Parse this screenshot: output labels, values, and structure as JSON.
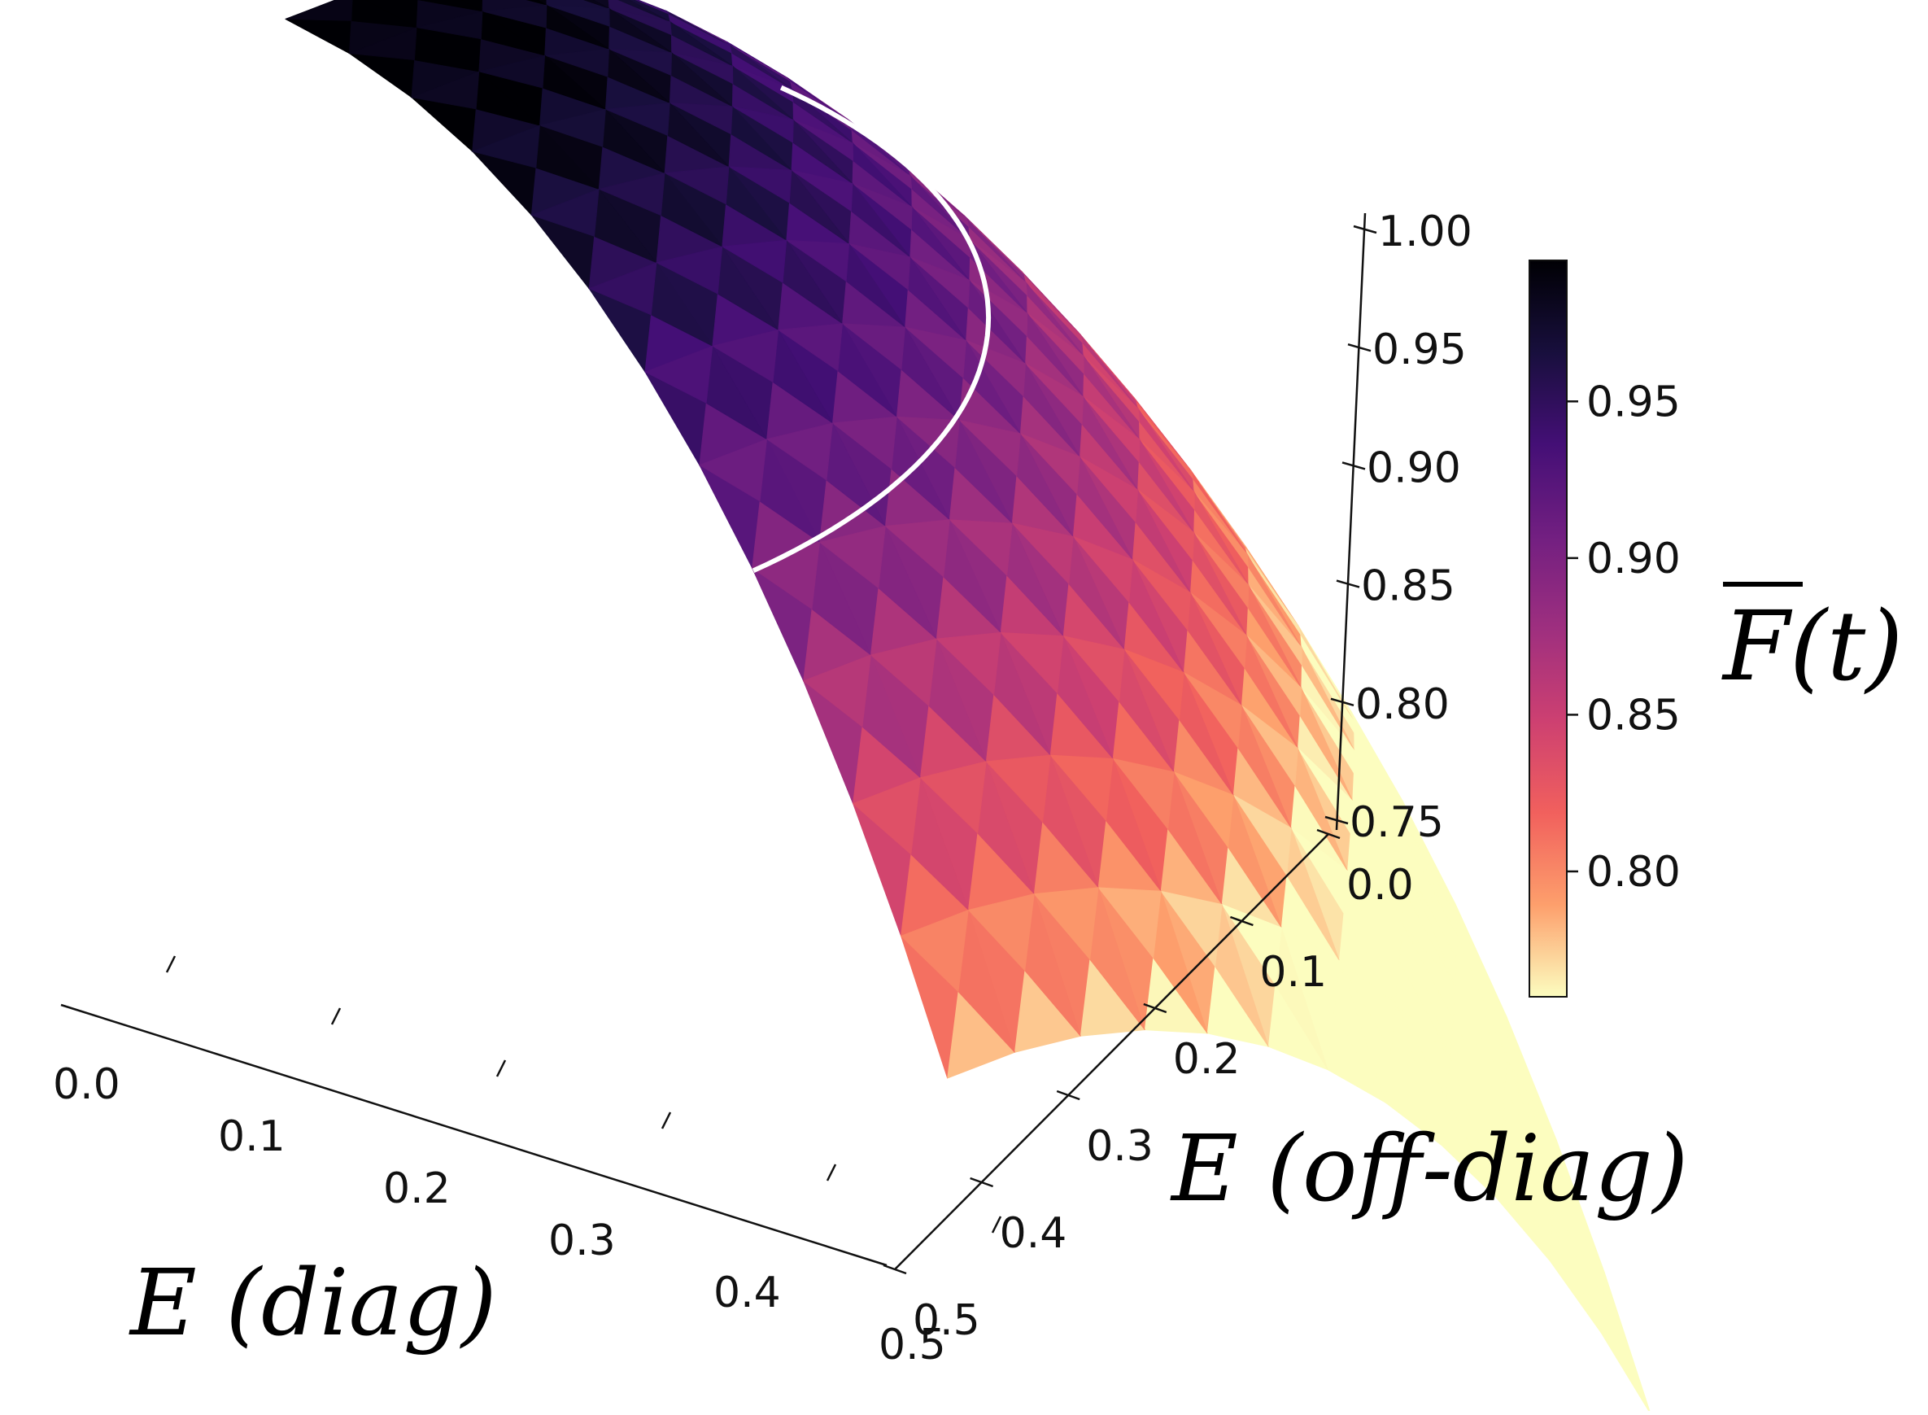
{
  "chart_data": {
    "type": "surface3d",
    "x": {
      "label": "E (diag)",
      "ticks": [
        "0.0",
        "0.1",
        "0.2",
        "0.3",
        "0.4",
        "0.5"
      ],
      "range": [
        0,
        0.5
      ]
    },
    "y": {
      "label": "E (off-diag)",
      "ticks": [
        "0.0",
        "0.1",
        "0.2",
        "0.3",
        "0.4",
        "0.5"
      ],
      "range": [
        0,
        0.5
      ]
    },
    "z": {
      "ticks": [
        "0.75",
        "0.80",
        "0.85",
        "0.90",
        "0.95",
        "1.00"
      ],
      "range": [
        0.75,
        1.0
      ]
    },
    "colorbar": {
      "label": "F(t)",
      "colormap": "magma_r",
      "range": [
        0.76,
        0.995
      ],
      "ticks": [
        "0.80",
        "0.85",
        "0.90",
        "0.95"
      ],
      "colors": [
        "#fcfdbf",
        "#fd9f6c",
        "#f1605d",
        "#cd4071",
        "#9e2f7f",
        "#721f81",
        "#440f76",
        "#180f3d",
        "#000004"
      ]
    },
    "surface_model": "z = 0.995 - 0.85*(x^2 + y^2)",
    "contour": {
      "level": 0.9,
      "color": "#ffffff"
    },
    "grid": false
  }
}
